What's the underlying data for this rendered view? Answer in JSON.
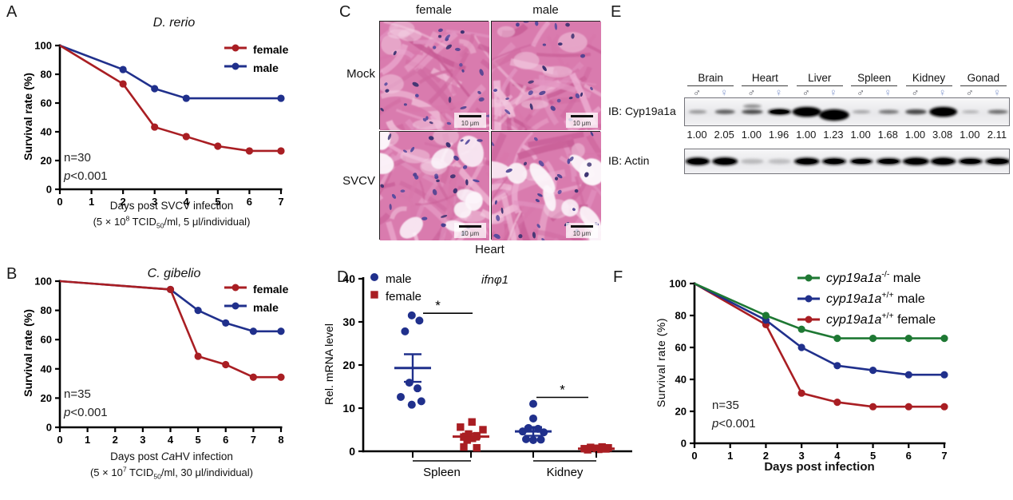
{
  "colors": {
    "female_red": "#a91e23",
    "male_blue": "#20308c",
    "knockout_green": "#1e7833",
    "male_symbol": "#4b4d58",
    "female_symbol": "#8095cc"
  },
  "chart_data": [
    {
      "id": "A",
      "panel_letter": "A",
      "type": "line",
      "title": [
        {
          "text": "D. rerio",
          "italic": true
        }
      ],
      "ylabel": "Survival rate (%)",
      "xlabel": [
        {
          "text": "Days post SVCV infection"
        }
      ],
      "xsublabel": [
        {
          "text": "(5 × 10"
        },
        {
          "text": "8",
          "sup": true
        },
        {
          "text": " TCID"
        },
        {
          "text": "50",
          "sub": true
        },
        {
          "text": "/ml, 5 μl/individual)"
        }
      ],
      "xlim": [
        0,
        7
      ],
      "ylim": [
        0,
        100
      ],
      "xticks": [
        0,
        1,
        2,
        3,
        4,
        5,
        6,
        7
      ],
      "yticks": [
        0,
        20,
        40,
        60,
        80,
        100
      ],
      "grid": false,
      "legend_pos": "top-right",
      "stats": [
        [
          {
            "text": "n=30"
          }
        ],
        [
          {
            "text": "p",
            "italic": true
          },
          {
            "text": "<0.001"
          }
        ]
      ],
      "series": [
        {
          "name": "female",
          "color": "#a91e23",
          "label": [
            {
              "text": "female"
            }
          ],
          "points": [
            [
              0,
              100
            ],
            [
              2,
              73.3
            ],
            [
              3,
              43.3
            ],
            [
              4,
              36.7
            ],
            [
              5,
              30
            ],
            [
              6,
              26.7
            ],
            [
              7,
              26.7
            ]
          ],
          "marker_days": [
            2,
            3,
            4,
            5,
            6,
            7
          ]
        },
        {
          "name": "male",
          "color": "#20308c",
          "label": [
            {
              "text": "male"
            }
          ],
          "points": [
            [
              0,
              100
            ],
            [
              2,
              83.3
            ],
            [
              3,
              70
            ],
            [
              4,
              63.3
            ],
            [
              7,
              63.3
            ]
          ],
          "marker_days": [
            2,
            3,
            4,
            7
          ]
        }
      ]
    },
    {
      "id": "B",
      "panel_letter": "B",
      "type": "line",
      "title": [
        {
          "text": "C. gibelio",
          "italic": true
        }
      ],
      "ylabel": "Survival rate (%)",
      "xlabel": [
        {
          "text": "Days post "
        },
        {
          "text": "Ca",
          "italic": true
        },
        {
          "text": "HV infection"
        }
      ],
      "xsublabel": [
        {
          "text": "(5 × 10"
        },
        {
          "text": "7",
          "sup": true
        },
        {
          "text": " TCID"
        },
        {
          "text": "50",
          "sub": true
        },
        {
          "text": "/ml, 30 μl/individual)"
        }
      ],
      "xlim": [
        0,
        8
      ],
      "ylim": [
        0,
        100
      ],
      "xticks": [
        0,
        1,
        2,
        3,
        4,
        5,
        6,
        7,
        8
      ],
      "yticks": [
        0,
        20,
        40,
        60,
        80,
        100
      ],
      "grid": false,
      "legend_pos": "top-right",
      "stats": [
        [
          {
            "text": "n=35"
          }
        ],
        [
          {
            "text": "p",
            "italic": true
          },
          {
            "text": "<0.001"
          }
        ]
      ],
      "series": [
        {
          "name": "female",
          "color": "#a91e23",
          "label": [
            {
              "text": "female"
            }
          ],
          "points": [
            [
              0,
              100
            ],
            [
              4,
              94.3
            ],
            [
              5,
              48.6
            ],
            [
              6,
              42.9
            ],
            [
              7,
              34.3
            ],
            [
              8,
              34.3
            ]
          ],
          "marker_days": [
            4,
            5,
            6,
            7,
            8
          ]
        },
        {
          "name": "male",
          "color": "#20308c",
          "label": [
            {
              "text": "male"
            }
          ],
          "points": [
            [
              0,
              100
            ],
            [
              4,
              94.3
            ],
            [
              5,
              80
            ],
            [
              6,
              71.4
            ],
            [
              7,
              65.7
            ],
            [
              8,
              65.7
            ]
          ],
          "marker_days": [
            4,
            5,
            6,
            7,
            8
          ]
        }
      ]
    },
    {
      "id": "D",
      "panel_letter": "D",
      "type": "scatter",
      "title": [
        {
          "text": "ifnφ1",
          "italic": true
        }
      ],
      "ylabel": "Rel. mRNA level",
      "ylim": [
        0,
        40
      ],
      "yticks": [
        0,
        10,
        20,
        30,
        40
      ],
      "category_labels": [
        "Spleen",
        "Kidney"
      ],
      "legend": [
        {
          "label": [
            {
              "text": "male"
            }
          ],
          "color": "#20308c",
          "marker": "circle"
        },
        {
          "label": [
            {
              "text": "female"
            }
          ],
          "color": "#a91e23",
          "marker": "square"
        }
      ],
      "groups": [
        {
          "tissue": "Spleen",
          "sex": "male",
          "color": "#20308c",
          "marker": "circle",
          "mean": 19.3,
          "sem": 3.2,
          "points": [
            [
              -0.02,
              31.5
            ],
            [
              0.14,
              30.3
            ],
            [
              -0.16,
              27.8
            ],
            [
              -0.07,
              15.9
            ],
            [
              0.1,
              14.6
            ],
            [
              -0.25,
              12.6
            ],
            [
              0.18,
              11.6
            ],
            [
              -0.02,
              10.8
            ]
          ]
        },
        {
          "tissue": "Spleen",
          "sex": "female",
          "color": "#a91e23",
          "marker": "square",
          "mean": 3.4,
          "sem": 0.7,
          "points": [
            [
              0.02,
              6.8
            ],
            [
              -0.22,
              5.6
            ],
            [
              0.25,
              5.0
            ],
            [
              -0.05,
              4.0
            ],
            [
              0.12,
              3.6
            ],
            [
              -0.15,
              3.3
            ],
            [
              0.03,
              3.0
            ],
            [
              -0.08,
              2.6
            ],
            [
              -0.15,
              1.0
            ],
            [
              0.12,
              0.8
            ]
          ]
        },
        {
          "tissue": "Kidney",
          "sex": "male",
          "color": "#20308c",
          "marker": "circle",
          "mean": 4.6,
          "sem": 1.0,
          "points": [
            [
              0,
              11.0
            ],
            [
              0,
              7.6
            ],
            [
              -0.1,
              5.4
            ],
            [
              0.1,
              5.2
            ],
            [
              -0.22,
              4.6
            ],
            [
              0.22,
              4.4
            ],
            [
              -0.15,
              2.8
            ],
            [
              0,
              2.6
            ],
            [
              0.16,
              2.7
            ]
          ]
        },
        {
          "tissue": "Kidney",
          "sex": "female",
          "color": "#a91e23",
          "marker": "square",
          "mean": 0.6,
          "sem": 0.15,
          "points": [
            [
              -0.25,
              0.6
            ],
            [
              -0.12,
              0.9
            ],
            [
              0,
              0.7
            ],
            [
              0.12,
              1.0
            ],
            [
              0.25,
              0.8
            ],
            [
              -0.18,
              0.35
            ],
            [
              0.05,
              0.45
            ],
            [
              0.2,
              0.55
            ]
          ]
        }
      ],
      "significance": [
        {
          "between": [
            0,
            1
          ],
          "y": 32,
          "label": "*"
        },
        {
          "between": [
            2,
            3
          ],
          "y": 12.5,
          "label": "*"
        }
      ]
    },
    {
      "id": "F",
      "panel_letter": "F",
      "type": "line",
      "title": null,
      "ylabel": "Survival rate (%)",
      "xlabel": [
        {
          "text": "Days post infection",
          "bold": true
        }
      ],
      "xsublabel": null,
      "xlim": [
        0,
        7
      ],
      "ylim": [
        0,
        100
      ],
      "xticks": [
        0,
        1,
        2,
        3,
        4,
        5,
        6,
        7
      ],
      "yticks": [
        0,
        20,
        40,
        60,
        80,
        100
      ],
      "grid": false,
      "legend_pos": "top-right",
      "stats": [
        [
          {
            "text": "n=35"
          }
        ],
        [
          {
            "text": "p",
            "italic": true
          },
          {
            "text": "<0.001"
          }
        ]
      ],
      "series": [
        {
          "name": "cyp19a1a-ko-male",
          "color": "#1e7833",
          "label": [
            {
              "text": "cyp19a1a",
              "italic": true
            },
            {
              "text": "-/-",
              "sup": true
            },
            {
              "text": " male"
            }
          ],
          "points": [
            [
              0,
              100
            ],
            [
              2,
              80
            ],
            [
              3,
              71.4
            ],
            [
              4,
              65.7
            ],
            [
              5,
              65.7
            ],
            [
              6,
              65.7
            ],
            [
              7,
              65.7
            ]
          ],
          "marker_days": [
            2,
            3,
            4,
            5,
            6,
            7
          ]
        },
        {
          "name": "cyp19a1a-wt-male",
          "color": "#20308c",
          "label": [
            {
              "text": "cyp19a1a",
              "italic": true
            },
            {
              "text": "+/+",
              "sup": true
            },
            {
              "text": " male"
            }
          ],
          "points": [
            [
              0,
              100
            ],
            [
              2,
              77.1
            ],
            [
              3,
              60
            ],
            [
              4,
              48.6
            ],
            [
              5,
              45.7
            ],
            [
              6,
              42.9
            ],
            [
              7,
              42.9
            ]
          ],
          "marker_days": [
            2,
            3,
            4,
            5,
            6,
            7
          ]
        },
        {
          "name": "cyp19a1a-wt-female",
          "color": "#a91e23",
          "label": [
            {
              "text": "cyp19a1a",
              "italic": true
            },
            {
              "text": "+/+",
              "sup": true
            },
            {
              "text": " female"
            }
          ],
          "points": [
            [
              0,
              100
            ],
            [
              2,
              74.3
            ],
            [
              3,
              31.4
            ],
            [
              4,
              25.7
            ],
            [
              5,
              22.9
            ],
            [
              6,
              22.9
            ],
            [
              7,
              22.9
            ]
          ],
          "marker_days": [
            2,
            3,
            4,
            5,
            6,
            7
          ]
        }
      ]
    }
  ],
  "panel_c": {
    "panel_letter": "C",
    "col_labels": [
      "female",
      "male"
    ],
    "row_labels": [
      "Mock",
      "SVCV"
    ],
    "bottom_label": "Heart",
    "scalebar_label": "10 μm",
    "images": [
      {
        "name": "mock-female",
        "gaps": false,
        "seed": 3
      },
      {
        "name": "mock-male",
        "gaps": false,
        "seed": 7
      },
      {
        "name": "svcv-female",
        "gaps": true,
        "seed": 13
      },
      {
        "name": "svcv-male",
        "gaps": true,
        "seed": 21
      }
    ]
  },
  "panel_e": {
    "panel_letter": "E",
    "tissues": [
      "Brain",
      "Heart",
      "Liver",
      "Spleen",
      "Kidney",
      "Gonad"
    ],
    "sex_symbols": {
      "male": "♂",
      "female": "♀"
    },
    "rows": [
      {
        "label": "IB: Cyp19a1a",
        "bands": [
          {
            "v": 0.35,
            "w": 0.8,
            "h": 0.5
          },
          {
            "v": 0.6,
            "w": 0.9,
            "h": 0.6
          },
          {
            "v": 0.7,
            "w": 0.95,
            "h": 0.6,
            "dbl": true
          },
          {
            "v": 0.92,
            "w": 1.05,
            "h": 0.85
          },
          {
            "v": 1,
            "w": 1.3,
            "h": 1.4
          },
          {
            "v": 1,
            "w": 1.35,
            "h": 1.6,
            "dy": 4
          },
          {
            "v": 0.3,
            "w": 0.8,
            "h": 0.45
          },
          {
            "v": 0.5,
            "w": 0.9,
            "h": 0.55
          },
          {
            "v": 0.7,
            "w": 0.95,
            "h": 0.7
          },
          {
            "v": 1,
            "w": 1.25,
            "h": 1.4
          },
          {
            "v": 0.25,
            "w": 0.75,
            "h": 0.4
          },
          {
            "v": 0.55,
            "w": 0.9,
            "h": 0.55
          }
        ]
      },
      {
        "label": "IB: Actin",
        "bands": [
          {
            "v": 0.95,
            "w": 1.1,
            "h": 1.1
          },
          {
            "v": 0.95,
            "w": 1.15,
            "h": 1.15
          },
          {
            "v": 0.2,
            "w": 1,
            "h": 0.7
          },
          {
            "v": 0.18,
            "w": 1,
            "h": 0.7
          },
          {
            "v": 0.92,
            "w": 1.15,
            "h": 1.05
          },
          {
            "v": 0.88,
            "w": 1.1,
            "h": 1
          },
          {
            "v": 0.85,
            "w": 1.05,
            "h": 0.9
          },
          {
            "v": 0.88,
            "w": 1.1,
            "h": 0.95
          },
          {
            "v": 0.95,
            "w": 1.2,
            "h": 1.1
          },
          {
            "v": 0.95,
            "w": 1.15,
            "h": 1.1
          },
          {
            "v": 0.88,
            "w": 1.1,
            "h": 0.95
          },
          {
            "v": 0.9,
            "w": 1.15,
            "h": 1
          }
        ]
      }
    ],
    "quant_values": [
      "1.00",
      "2.05",
      "1.00",
      "1.96",
      "1.00",
      "1.23",
      "1.00",
      "1.68",
      "1.00",
      "3.08",
      "1.00",
      "2.11"
    ]
  }
}
